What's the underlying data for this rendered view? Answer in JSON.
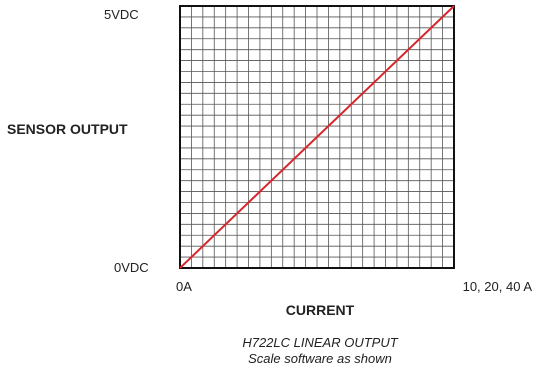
{
  "chart_data": {
    "type": "line",
    "title": "",
    "xlabel": "CURRENT",
    "ylabel": "SENSOR OUTPUT",
    "x_tick_labels": [
      "0A",
      "10, 20, 40 A"
    ],
    "y_tick_labels": [
      "0VDC",
      "5VDC"
    ],
    "xlim": [
      0,
      1
    ],
    "ylim": [
      0,
      5
    ],
    "grid": true,
    "grid_divisions_x": 24,
    "grid_divisions_y": 24,
    "series": [
      {
        "x": [
          0,
          1
        ],
        "y": [
          0,
          5
        ],
        "color": "#d7262b"
      }
    ],
    "caption_lines": [
      "H722LC LINEAR OUTPUT",
      "Scale software as shown"
    ],
    "colors": {
      "grid": "#555555",
      "frame": "#111111",
      "line": "#d7262b"
    }
  }
}
